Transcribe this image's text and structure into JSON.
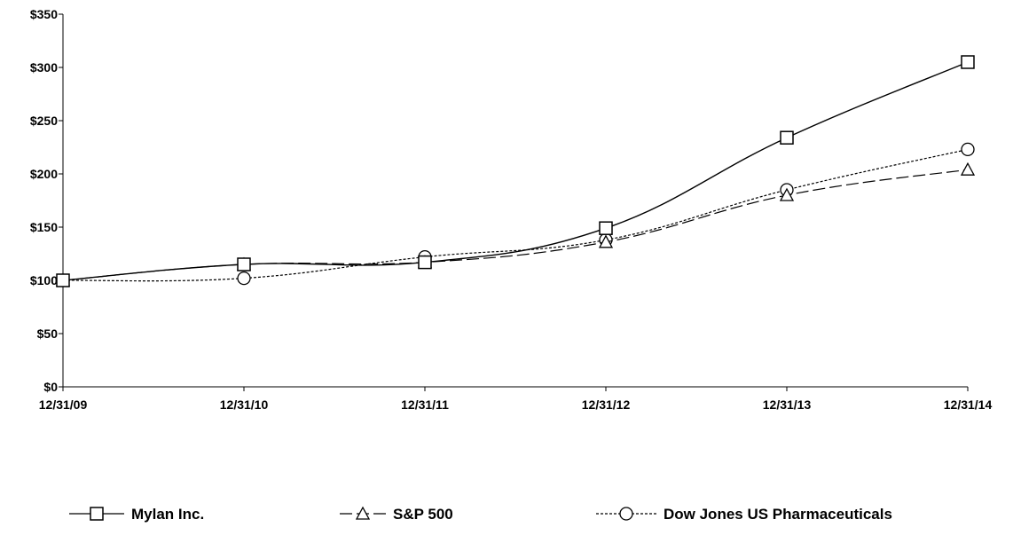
{
  "chart_data": {
    "type": "line",
    "categories": [
      "12/31/09",
      "12/31/10",
      "12/31/11",
      "12/31/12",
      "12/31/13",
      "12/31/14"
    ],
    "series": [
      {
        "name": "Mylan Inc.",
        "values": [
          100,
          115,
          117,
          149,
          234,
          305
        ],
        "marker": "square",
        "dash": "solid"
      },
      {
        "name": "S&P 500",
        "values": [
          100,
          115,
          117,
          136,
          180,
          204
        ],
        "marker": "triangle",
        "dash": "long-dash"
      },
      {
        "name": "Dow Jones US Pharmaceuticals",
        "values": [
          100,
          102,
          122,
          138,
          185,
          223
        ],
        "marker": "circle",
        "dash": "short-dash"
      }
    ],
    "y_ticks": [
      "$0",
      "$50",
      "$100",
      "$150",
      "$200",
      "$250",
      "$300",
      "$350"
    ],
    "ylim": [
      0,
      350
    ],
    "title": "",
    "xlabel": "",
    "ylabel": "",
    "grid": false,
    "legend_position": "bottom",
    "colors": {
      "line": "#000000",
      "marker_fill": "#ffffff"
    }
  }
}
